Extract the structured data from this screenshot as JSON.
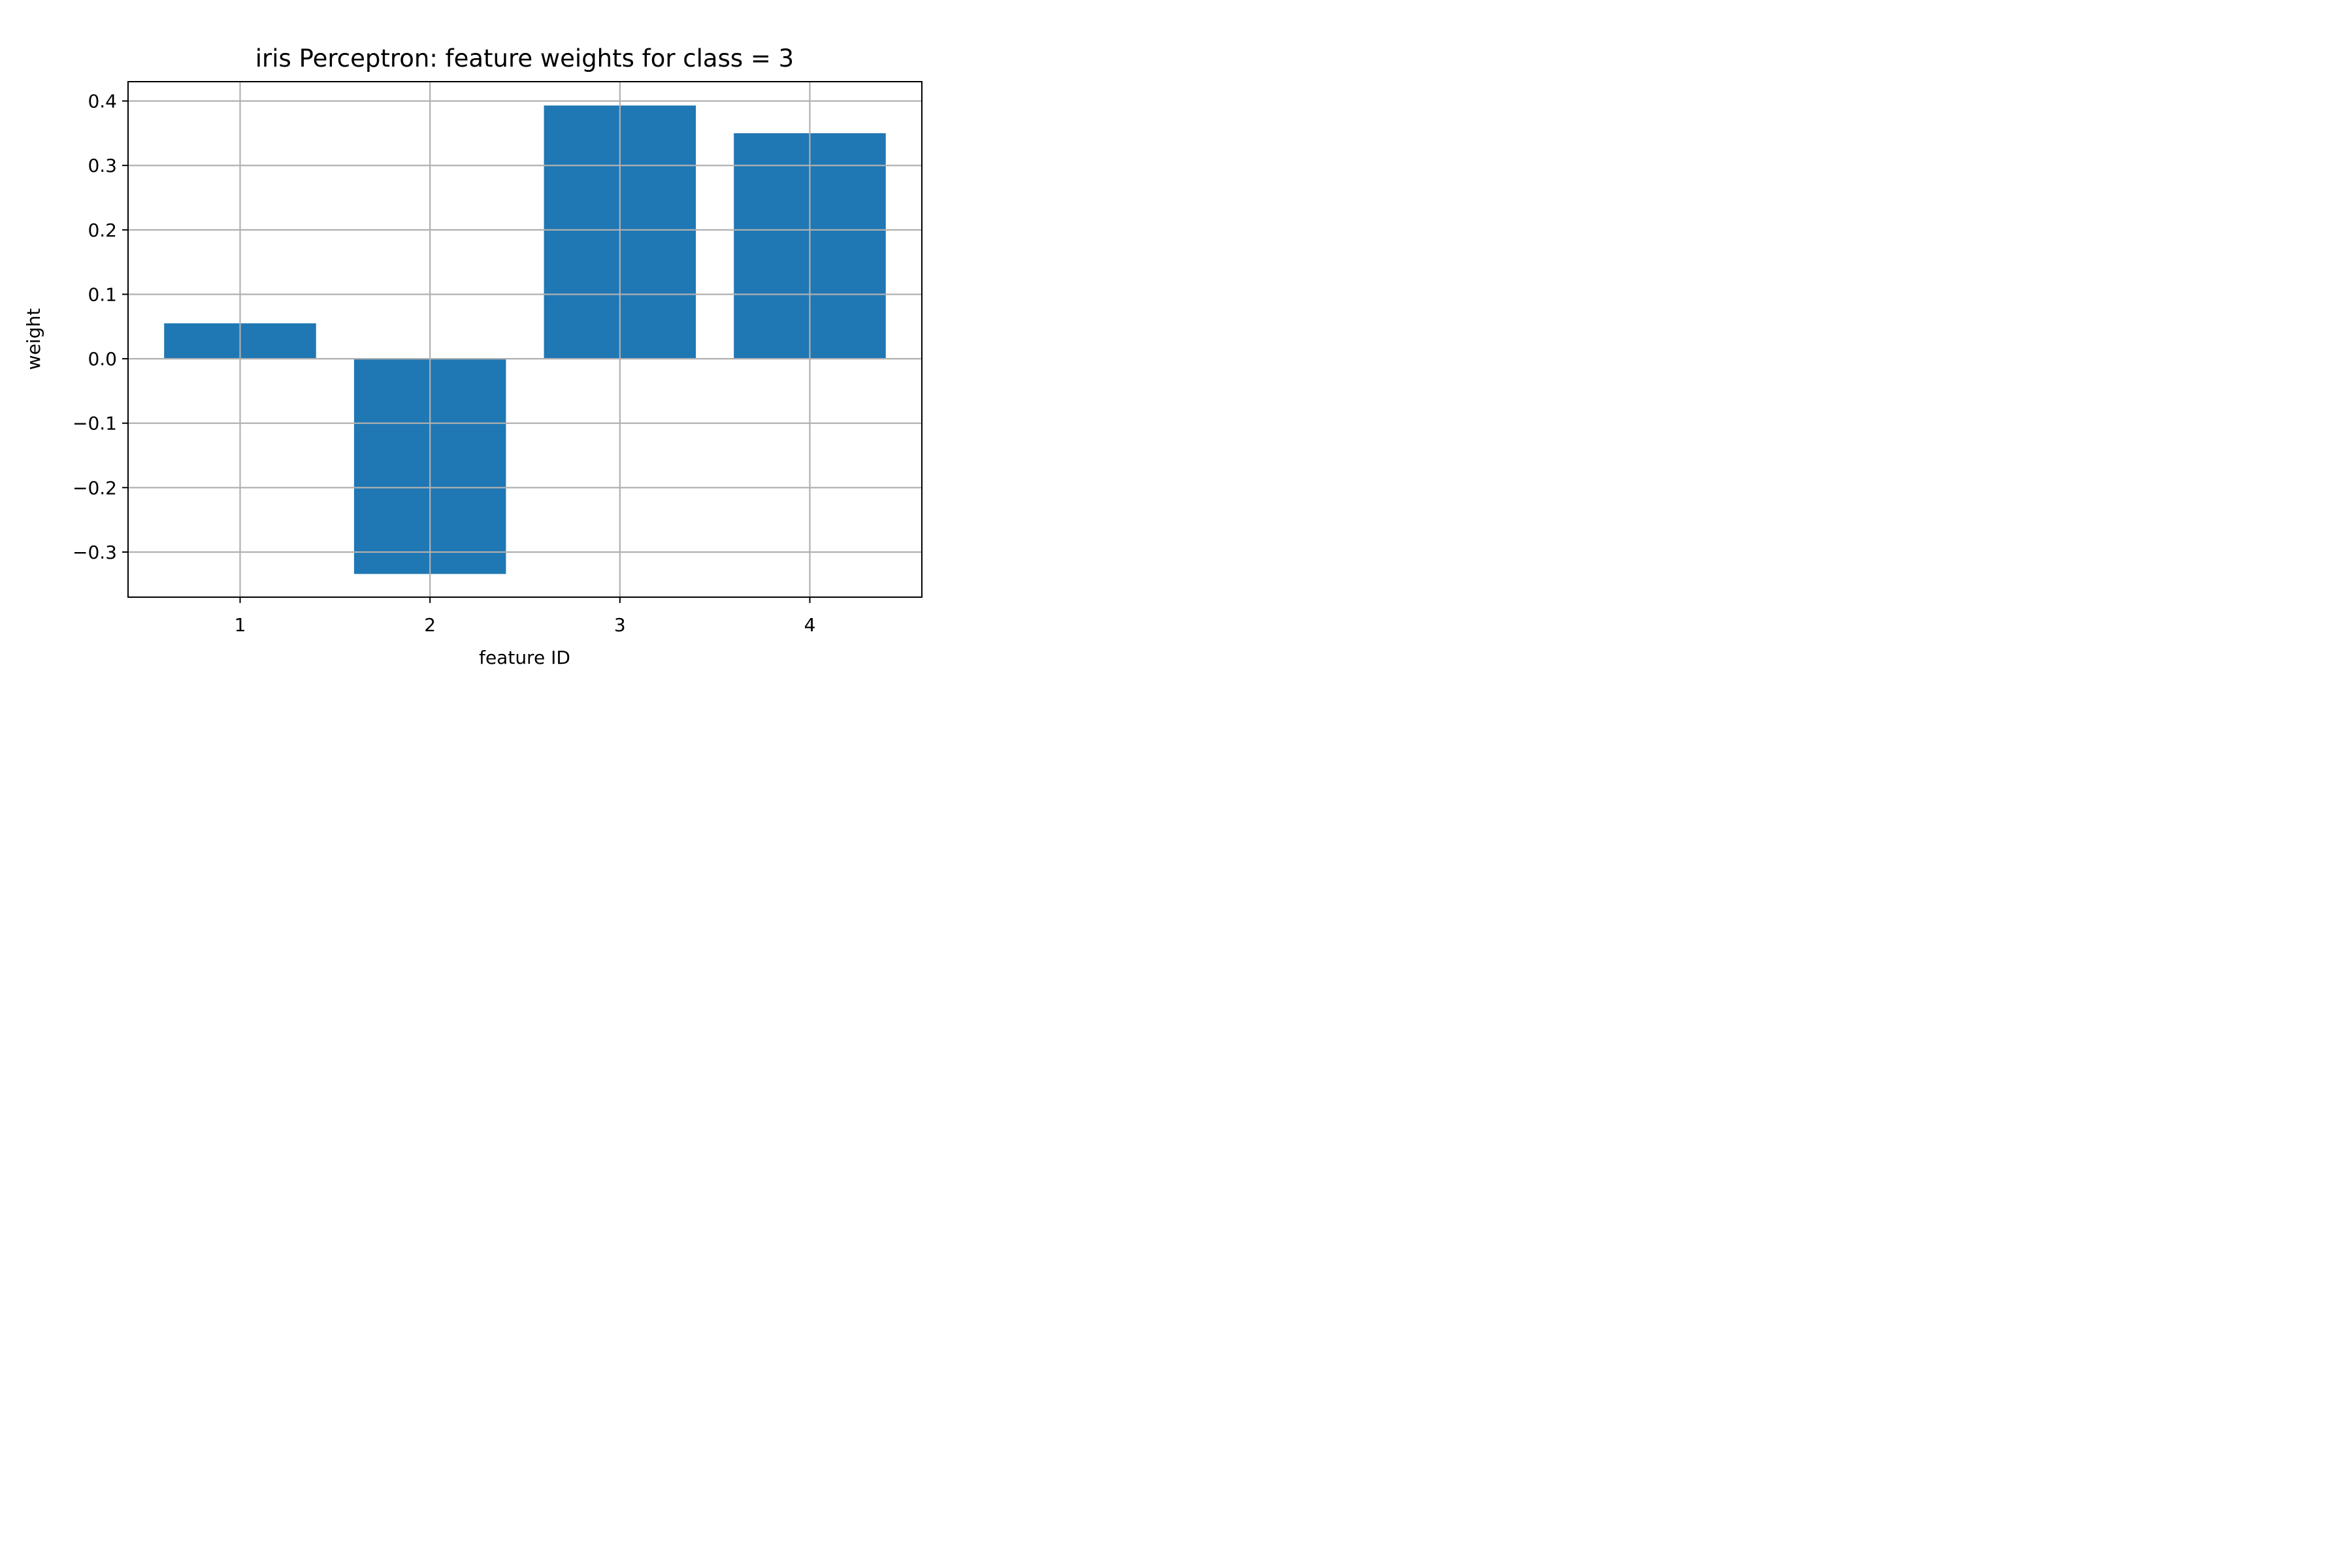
{
  "chart_data": {
    "type": "bar",
    "title": "iris Perceptron: feature weights for class = 3",
    "xlabel": "feature ID",
    "ylabel": "weight",
    "categories": [
      "1",
      "2",
      "3",
      "4"
    ],
    "x": [
      1,
      2,
      3,
      4
    ],
    "values": [
      0.055,
      -0.334,
      0.393,
      0.35
    ],
    "xlim": [
      0.41,
      4.59
    ],
    "ylim": [
      -0.37,
      0.43
    ],
    "xticks": [
      1,
      2,
      3,
      4
    ],
    "xtick_labels": [
      "1",
      "2",
      "3",
      "4"
    ],
    "yticks": [
      -0.3,
      -0.2,
      -0.1,
      0.0,
      0.1,
      0.2,
      0.3,
      0.4
    ],
    "ytick_labels": [
      "−0.3",
      "−0.2",
      "−0.1",
      "0.0",
      "0.1",
      "0.2",
      "0.3",
      "0.4"
    ],
    "bar_width": 0.8,
    "grid": true,
    "legend": "none",
    "colors": {
      "bar": "#1f77b4",
      "grid": "#b0b0b0",
      "axes": "#000000",
      "background": "#ffffff"
    }
  }
}
